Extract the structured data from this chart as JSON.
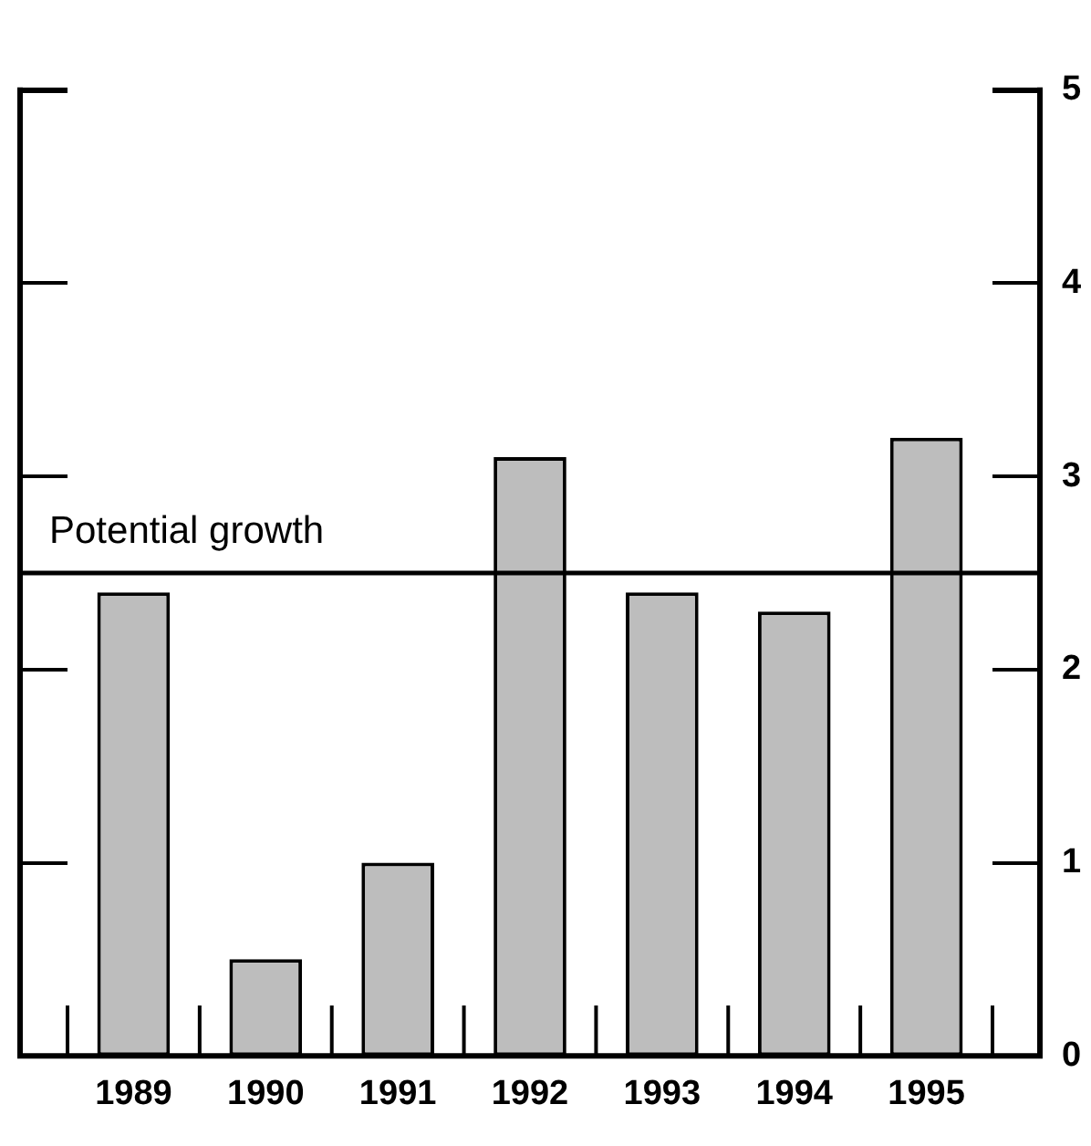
{
  "chart_data": {
    "type": "bar",
    "categories": [
      "1989",
      "1990",
      "1991",
      "1992",
      "1993",
      "1994",
      "1995"
    ],
    "values": [
      2.4,
      0.5,
      1.0,
      3.1,
      2.4,
      2.3,
      3.2
    ],
    "color": "#bdbdbd",
    "ylim": [
      0,
      5
    ],
    "yticks": [
      0,
      1,
      2,
      3,
      4,
      5
    ],
    "grid": false,
    "ref_lines": [
      {
        "axis": "y",
        "value": 2.5,
        "label": "Potential growth"
      }
    ]
  }
}
